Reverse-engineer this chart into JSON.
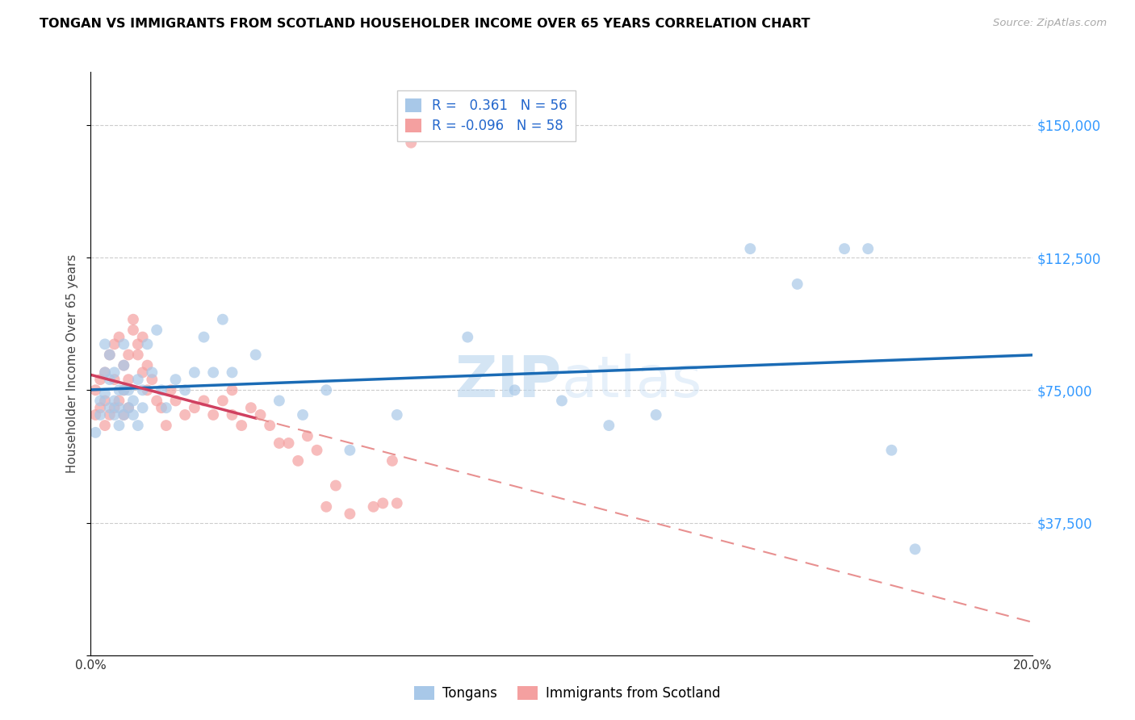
{
  "title": "TONGAN VS IMMIGRANTS FROM SCOTLAND HOUSEHOLDER INCOME OVER 65 YEARS CORRELATION CHART",
  "source": "Source: ZipAtlas.com",
  "ylabel": "Householder Income Over 65 years",
  "xlim": [
    0.0,
    0.2
  ],
  "ylim": [
    0,
    165000
  ],
  "yticks": [
    0,
    37500,
    75000,
    112500,
    150000
  ],
  "ytick_labels": [
    "",
    "$37,500",
    "$75,000",
    "$112,500",
    "$150,000"
  ],
  "xticks": [
    0.0,
    0.02,
    0.04,
    0.06,
    0.08,
    0.1,
    0.12,
    0.14,
    0.16,
    0.18,
    0.2
  ],
  "xtick_labels": [
    "0.0%",
    "",
    "",
    "",
    "",
    "",
    "",
    "",
    "",
    "",
    "20.0%"
  ],
  "legend_R_blue": "0.361",
  "legend_N_blue": "56",
  "legend_R_pink": "-0.096",
  "legend_N_pink": "58",
  "blue_color": "#a8c8e8",
  "pink_color": "#f4a0a0",
  "blue_line_color": "#1a6bb5",
  "pink_line_solid_color": "#d04060",
  "pink_line_dash_color": "#e89090",
  "watermark_zip": "ZIP",
  "watermark_atlas": "atlas",
  "blue_x": [
    0.001,
    0.002,
    0.002,
    0.003,
    0.003,
    0.003,
    0.004,
    0.004,
    0.004,
    0.005,
    0.005,
    0.005,
    0.006,
    0.006,
    0.006,
    0.007,
    0.007,
    0.007,
    0.007,
    0.008,
    0.008,
    0.009,
    0.009,
    0.01,
    0.01,
    0.011,
    0.011,
    0.012,
    0.013,
    0.014,
    0.015,
    0.016,
    0.018,
    0.02,
    0.022,
    0.024,
    0.026,
    0.028,
    0.03,
    0.035,
    0.04,
    0.045,
    0.05,
    0.055,
    0.065,
    0.08,
    0.09,
    0.1,
    0.11,
    0.12,
    0.14,
    0.15,
    0.16,
    0.165,
    0.17,
    0.175
  ],
  "blue_y": [
    63000,
    68000,
    72000,
    74000,
    80000,
    88000,
    70000,
    78000,
    85000,
    68000,
    72000,
    80000,
    65000,
    70000,
    75000,
    68000,
    75000,
    82000,
    88000,
    70000,
    75000,
    68000,
    72000,
    65000,
    78000,
    70000,
    75000,
    88000,
    80000,
    92000,
    75000,
    70000,
    78000,
    75000,
    80000,
    90000,
    80000,
    95000,
    80000,
    85000,
    72000,
    68000,
    75000,
    58000,
    68000,
    90000,
    75000,
    72000,
    65000,
    68000,
    115000,
    105000,
    115000,
    115000,
    58000,
    30000
  ],
  "pink_x": [
    0.001,
    0.001,
    0.002,
    0.002,
    0.003,
    0.003,
    0.003,
    0.004,
    0.004,
    0.005,
    0.005,
    0.005,
    0.006,
    0.006,
    0.007,
    0.007,
    0.007,
    0.008,
    0.008,
    0.008,
    0.009,
    0.009,
    0.01,
    0.01,
    0.011,
    0.011,
    0.012,
    0.012,
    0.013,
    0.014,
    0.015,
    0.016,
    0.017,
    0.018,
    0.02,
    0.022,
    0.024,
    0.026,
    0.028,
    0.03,
    0.03,
    0.032,
    0.034,
    0.036,
    0.038,
    0.04,
    0.042,
    0.044,
    0.046,
    0.048,
    0.05,
    0.052,
    0.055,
    0.06,
    0.062,
    0.064,
    0.065,
    0.068
  ],
  "pink_y": [
    68000,
    75000,
    70000,
    78000,
    65000,
    72000,
    80000,
    68000,
    85000,
    70000,
    78000,
    88000,
    72000,
    90000,
    68000,
    75000,
    82000,
    70000,
    78000,
    85000,
    92000,
    95000,
    85000,
    88000,
    80000,
    90000,
    75000,
    82000,
    78000,
    72000,
    70000,
    65000,
    75000,
    72000,
    68000,
    70000,
    72000,
    68000,
    72000,
    68000,
    75000,
    65000,
    70000,
    68000,
    65000,
    60000,
    60000,
    55000,
    62000,
    58000,
    42000,
    48000,
    40000,
    42000,
    43000,
    55000,
    43000,
    145000
  ]
}
